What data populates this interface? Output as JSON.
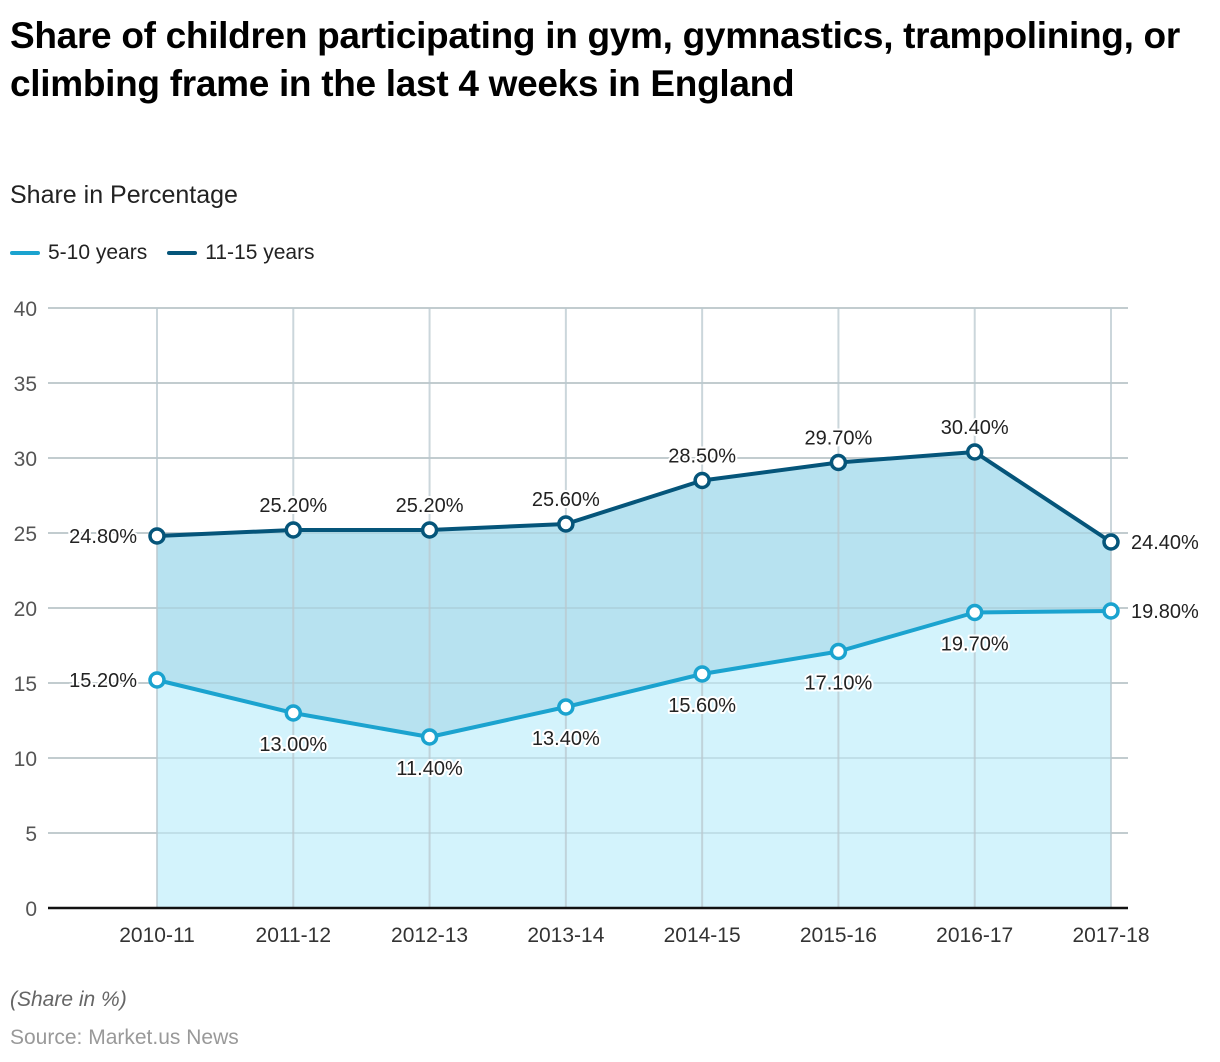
{
  "title": "Share of children participating in gym, gymnastics, trampolining, or climbing frame in the last 4 weeks in England",
  "subtitle": "Share in Percentage",
  "note": "(Share in %)",
  "source": "Source: Market.us News",
  "colors": {
    "series_5_10": "#1ba3cf",
    "series_11_15": "#05557a",
    "fill_lower": "#d3f3fc",
    "fill_upper": "#b7e2f0",
    "grid": "#d6d6d6",
    "axis": "#111111"
  },
  "legend": [
    {
      "label": "5-10 years",
      "color": "#1ba3cf"
    },
    {
      "label": "11-15 years",
      "color": "#05557a"
    }
  ],
  "chart_data": {
    "type": "area",
    "title": "Share of children participating in gym, gymnastics, trampolining, or climbing frame in the last 4 weeks in England",
    "subtitle": "Share in Percentage",
    "xlabel": "",
    "ylabel": "",
    "categories": [
      "2010-11",
      "2011-12",
      "2012-13",
      "2013-14",
      "2014-15",
      "2015-16",
      "2016-17",
      "2017-18"
    ],
    "ylim": [
      0,
      40
    ],
    "yticks": [
      0,
      5,
      10,
      15,
      20,
      25,
      30,
      35,
      40
    ],
    "grid": true,
    "legend_position": "top-left",
    "series": [
      {
        "name": "5-10 years",
        "values": [
          15.2,
          13.0,
          11.4,
          13.4,
          15.6,
          17.1,
          19.7,
          19.8
        ],
        "labels": [
          "15.20%",
          "13.00%",
          "11.40%",
          "13.40%",
          "15.60%",
          "17.10%",
          "19.70%",
          "19.80%"
        ],
        "label_position": [
          "left",
          "below",
          "below",
          "below",
          "below",
          "below",
          "below",
          "right"
        ]
      },
      {
        "name": "11-15 years",
        "values": [
          24.8,
          25.2,
          25.2,
          25.6,
          28.5,
          29.7,
          30.4,
          24.4
        ],
        "labels": [
          "24.80%",
          "25.20%",
          "25.20%",
          "25.60%",
          "28.50%",
          "29.70%",
          "30.40%",
          "24.40%"
        ],
        "label_position": [
          "left",
          "above",
          "above",
          "above",
          "above",
          "above",
          "above",
          "right"
        ]
      }
    ]
  }
}
